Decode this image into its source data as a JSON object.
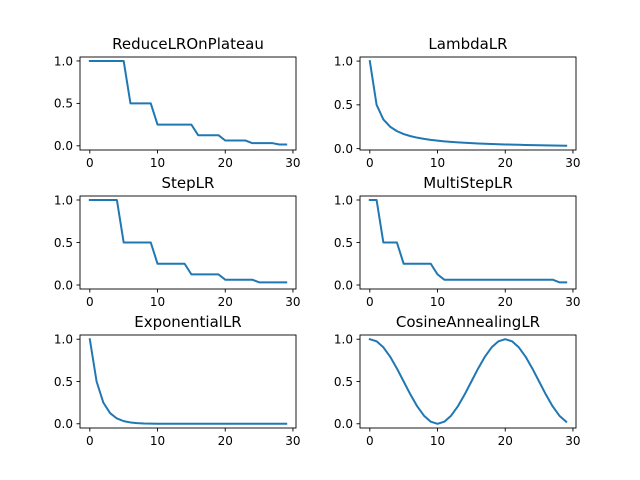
{
  "figure": {
    "background": "#ffffff",
    "line_color": "#1f77b4"
  },
  "chart_data": [
    {
      "type": "line",
      "title": "ReduceLROnPlateau",
      "xlim": [
        -1.45,
        30.45
      ],
      "ylim": [
        -0.0492,
        1.0467
      ],
      "xticks": [
        0,
        10,
        20,
        30
      ],
      "yticks": [
        0.0,
        0.5,
        1.0
      ],
      "xticklabels": [
        "0",
        "10",
        "20",
        "30"
      ],
      "yticklabels": [
        "0.0",
        "0.5",
        "1.0"
      ],
      "series": [
        {
          "x": [
            0,
            1,
            2,
            3,
            4,
            5,
            6,
            7,
            8,
            9,
            10,
            11,
            12,
            13,
            14,
            15,
            16,
            17,
            18,
            19,
            20,
            21,
            22,
            23,
            24,
            25,
            26,
            27,
            28,
            29
          ],
          "y": [
            1,
            1,
            1,
            1,
            1,
            1,
            0.5,
            0.5,
            0.5,
            0.5,
            0.25,
            0.25,
            0.25,
            0.25,
            0.25,
            0.25,
            0.125,
            0.125,
            0.125,
            0.125,
            0.0625,
            0.0625,
            0.0625,
            0.0625,
            0.03125,
            0.03125,
            0.03125,
            0.03125,
            0.015625,
            0.015625
          ]
        }
      ]
    },
    {
      "type": "line",
      "title": "LambdaLR",
      "xlim": [
        -1.45,
        30.45
      ],
      "ylim": [
        -0.0158,
        1.0466
      ],
      "xticks": [
        0,
        10,
        20,
        30
      ],
      "yticks": [
        0.0,
        0.5,
        1.0
      ],
      "xticklabels": [
        "0",
        "10",
        "20",
        "30"
      ],
      "yticklabels": [
        "0.0",
        "0.5",
        "1.0"
      ],
      "series": [
        {
          "x": [
            0,
            1,
            2,
            3,
            4,
            5,
            6,
            7,
            8,
            9,
            10,
            11,
            12,
            13,
            14,
            15,
            16,
            17,
            18,
            19,
            20,
            21,
            22,
            23,
            24,
            25,
            26,
            27,
            28,
            29
          ],
          "y": [
            1,
            0.5,
            0.3333,
            0.25,
            0.2,
            0.1667,
            0.1429,
            0.125,
            0.1111,
            0.1,
            0.0909,
            0.0833,
            0.0769,
            0.0714,
            0.0667,
            0.0625,
            0.0588,
            0.0556,
            0.0526,
            0.05,
            0.0476,
            0.0455,
            0.0435,
            0.0417,
            0.04,
            0.0385,
            0.037,
            0.0357,
            0.0345,
            0.0333
          ]
        }
      ]
    },
    {
      "type": "line",
      "title": "StepLR",
      "xlim": [
        -1.45,
        30.45
      ],
      "ylim": [
        -0.0469,
        1.0469
      ],
      "xticks": [
        0,
        10,
        20,
        30
      ],
      "yticks": [
        0.0,
        0.5,
        1.0
      ],
      "xticklabels": [
        "0",
        "10",
        "20",
        "30"
      ],
      "yticklabels": [
        "0.0",
        "0.5",
        "1.0"
      ],
      "series": [
        {
          "x": [
            0,
            1,
            2,
            3,
            4,
            5,
            6,
            7,
            8,
            9,
            10,
            11,
            12,
            13,
            14,
            15,
            16,
            17,
            18,
            19,
            20,
            21,
            22,
            23,
            24,
            25,
            26,
            27,
            28,
            29
          ],
          "y": [
            1,
            1,
            1,
            1,
            1,
            0.5,
            0.5,
            0.5,
            0.5,
            0.5,
            0.25,
            0.25,
            0.25,
            0.25,
            0.25,
            0.125,
            0.125,
            0.125,
            0.125,
            0.125,
            0.0625,
            0.0625,
            0.0625,
            0.0625,
            0.0625,
            0.03125,
            0.03125,
            0.03125,
            0.03125,
            0.03125
          ]
        }
      ]
    },
    {
      "type": "line",
      "title": "MultiStepLR",
      "xlim": [
        -1.45,
        30.45
      ],
      "ylim": [
        -0.0469,
        1.0469
      ],
      "xticks": [
        0,
        10,
        20,
        30
      ],
      "yticks": [
        0.0,
        0.5,
        1.0
      ],
      "xticklabels": [
        "0",
        "10",
        "20",
        "30"
      ],
      "yticklabels": [
        "0.0",
        "0.5",
        "1.0"
      ],
      "series": [
        {
          "x": [
            0,
            1,
            2,
            3,
            4,
            5,
            6,
            7,
            8,
            9,
            10,
            11,
            12,
            13,
            14,
            15,
            16,
            17,
            18,
            19,
            20,
            21,
            22,
            23,
            24,
            25,
            26,
            27,
            28,
            29
          ],
          "y": [
            1,
            1,
            0.5,
            0.5,
            0.5,
            0.25,
            0.25,
            0.25,
            0.25,
            0.25,
            0.125,
            0.0625,
            0.0625,
            0.0625,
            0.0625,
            0.0625,
            0.0625,
            0.0625,
            0.0625,
            0.0625,
            0.0625,
            0.0625,
            0.0625,
            0.0625,
            0.0625,
            0.0625,
            0.0625,
            0.0625,
            0.03125,
            0.03125
          ]
        }
      ]
    },
    {
      "type": "line",
      "title": "ExponentialLR",
      "xlim": [
        -1.45,
        30.45
      ],
      "ylim": [
        -0.05,
        1.05
      ],
      "xticks": [
        0,
        10,
        20,
        30
      ],
      "yticks": [
        0.0,
        0.5,
        1.0
      ],
      "xticklabels": [
        "0",
        "10",
        "20",
        "30"
      ],
      "yticklabels": [
        "0.0",
        "0.5",
        "1.0"
      ],
      "series": [
        {
          "x": [
            0,
            1,
            2,
            3,
            4,
            5,
            6,
            7,
            8,
            9,
            10,
            11,
            12,
            13,
            14,
            15,
            16,
            17,
            18,
            19,
            20,
            21,
            22,
            23,
            24,
            25,
            26,
            27,
            28,
            29
          ],
          "y": [
            1,
            0.5,
            0.25,
            0.125,
            0.0625,
            0.03125,
            0.015625,
            0.0078125,
            0.0039063,
            0.0019531,
            0.00097656,
            0.00048828,
            0.00024414,
            0.00012207,
            6.1035e-05,
            3.0518e-05,
            1.5259e-05,
            7.6294e-06,
            3.8147e-06,
            1.9073e-06,
            9.5367e-07,
            4.7684e-07,
            2.3842e-07,
            1.1921e-07,
            5.9605e-08,
            2.9802e-08,
            1.4901e-08,
            7.4506e-09,
            3.7253e-09,
            1.8626e-09
          ]
        }
      ]
    },
    {
      "type": "line",
      "title": "CosineAnnealingLR",
      "xlim": [
        -1.45,
        30.45
      ],
      "ylim": [
        -0.05,
        1.05
      ],
      "xticks": [
        0,
        10,
        20,
        30
      ],
      "yticks": [
        0.0,
        0.5,
        1.0
      ],
      "xticklabels": [
        "0",
        "10",
        "20",
        "30"
      ],
      "yticklabels": [
        "0.0",
        "0.5",
        "1.0"
      ],
      "series": [
        {
          "x": [
            0,
            1,
            2,
            3,
            4,
            5,
            6,
            7,
            8,
            9,
            10,
            11,
            12,
            13,
            14,
            15,
            16,
            17,
            18,
            19,
            20,
            21,
            22,
            23,
            24,
            25,
            26,
            27,
            28,
            29
          ],
          "y": [
            1,
            0.9755,
            0.9045,
            0.7939,
            0.6545,
            0.5,
            0.3455,
            0.2061,
            0.0955,
            0.0245,
            0,
            0.0245,
            0.0955,
            0.2061,
            0.3455,
            0.5,
            0.6545,
            0.7939,
            0.9045,
            0.9755,
            1,
            0.9755,
            0.9045,
            0.7939,
            0.6545,
            0.5,
            0.3455,
            0.2061,
            0.0955,
            0.0245
          ]
        }
      ]
    }
  ]
}
